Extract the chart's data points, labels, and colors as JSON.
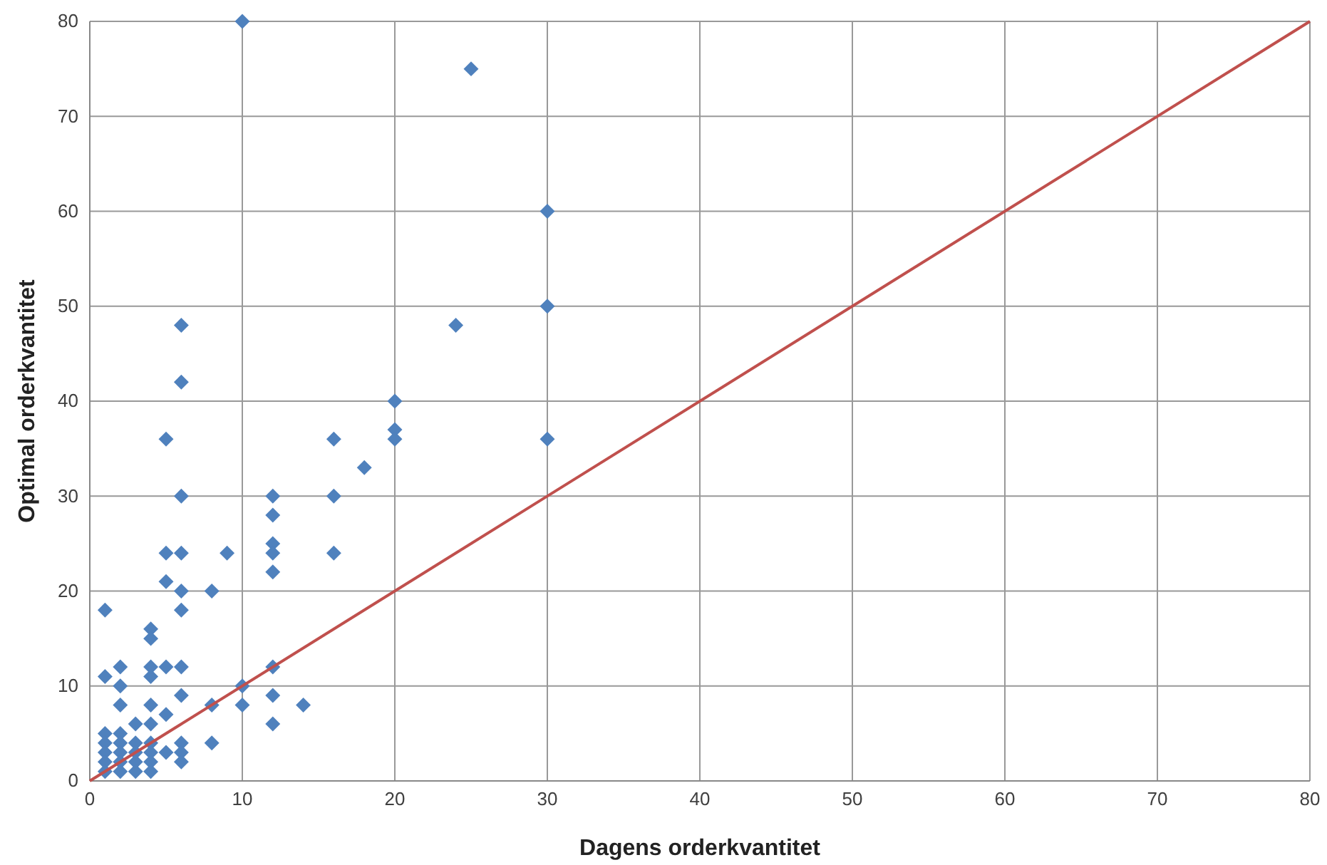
{
  "chart_data": {
    "type": "scatter",
    "xlabel": "Dagens orderkvantitet",
    "ylabel": "Optimal orderkvantitet",
    "xlim": [
      0,
      80
    ],
    "ylim": [
      0,
      80
    ],
    "xticks": [
      0,
      10,
      20,
      30,
      40,
      50,
      60,
      70,
      80
    ],
    "yticks": [
      0,
      10,
      20,
      30,
      40,
      50,
      60,
      70,
      80
    ],
    "grid": true,
    "marker": "diamond",
    "series": [
      {
        "color": "#4f81bd",
        "x": [
          10,
          25,
          30,
          30,
          30,
          24,
          20,
          20,
          20,
          18,
          16,
          16,
          16,
          12,
          12,
          12,
          12,
          12,
          12,
          12,
          12,
          14,
          10,
          10,
          8,
          8,
          8,
          9,
          6,
          6,
          6,
          6,
          6,
          6,
          6,
          6,
          6,
          6,
          6,
          5,
          5,
          5,
          5,
          5,
          5,
          4,
          4,
          4,
          4,
          4,
          4,
          4,
          4,
          4,
          4,
          3,
          3,
          3,
          3,
          3,
          2,
          2,
          2,
          2,
          2,
          2,
          2,
          2,
          1,
          1,
          1,
          1,
          1,
          1,
          1
        ],
        "values": [
          80,
          75,
          60,
          50,
          36,
          48,
          40,
          37,
          36,
          33,
          36,
          30,
          24,
          30,
          28,
          25,
          24,
          22,
          12,
          9,
          6,
          8,
          10,
          8,
          20,
          8,
          4,
          24,
          48,
          42,
          30,
          24,
          20,
          18,
          12,
          9,
          4,
          3,
          2,
          36,
          24,
          21,
          12,
          7,
          3,
          16,
          15,
          12,
          11,
          8,
          6,
          4,
          3,
          2,
          1,
          6,
          4,
          3,
          2,
          1,
          12,
          10,
          8,
          5,
          4,
          3,
          2,
          1,
          18,
          11,
          5,
          4,
          3,
          2,
          1
        ]
      },
      {
        "type": "line",
        "color": "#c0504d",
        "marker": "none",
        "x": [
          0,
          80
        ],
        "values": [
          0,
          80
        ]
      }
    ]
  }
}
